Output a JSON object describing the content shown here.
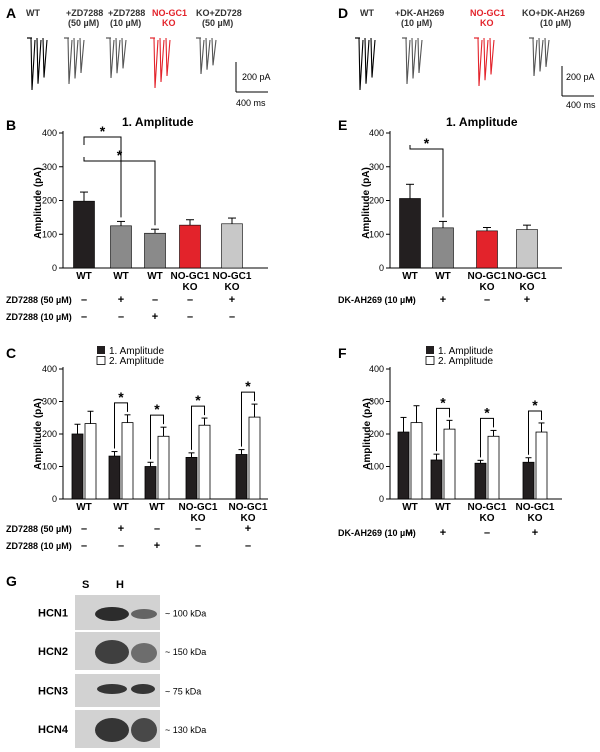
{
  "colors": {
    "black": "#231f20",
    "gray_dark": "#8a8a8a",
    "red": "#e3232b",
    "gray_light": "#c8c8c8",
    "white": "#ffffff"
  },
  "panels": {
    "A": {
      "letter": "A",
      "traces": [
        {
          "label": [
            "WT"
          ],
          "color": "#000000"
        },
        {
          "label": [
            "+ZD7288",
            "(50 µM)"
          ],
          "color": "#555555"
        },
        {
          "label": [
            "+ZD7288",
            "(10 µM)"
          ],
          "color": "#555555"
        },
        {
          "label": [
            "NO-GC1",
            "KO"
          ],
          "color": "#e3232b"
        },
        {
          "label": [
            "KO+ZD728",
            "(50 µM)"
          ],
          "color": "#555555"
        }
      ],
      "scale_y": "200 pA",
      "scale_x": "400 ms"
    },
    "D": {
      "letter": "D",
      "traces": [
        {
          "label": [
            "WT"
          ],
          "color": "#000000"
        },
        {
          "label": [
            "+DK-AH269",
            "(10 µM)"
          ],
          "color": "#555555"
        },
        {
          "label": [
            "NO-GC1",
            "KO"
          ],
          "color": "#e3232b"
        },
        {
          "label": [
            "KO+DK-AH269",
            "(10 µM)"
          ],
          "color": "#555555"
        }
      ],
      "scale_y": "200 pA",
      "scale_x": "400 ms"
    },
    "B": {
      "letter": "B",
      "title": "1. Amplitude",
      "ylabel": "Amplitude (pA)",
      "cond_labels": [
        "ZD7288 (50 µM)",
        "ZD7288 (10 µM)"
      ],
      "cond_rows": [
        [
          "–",
          "+",
          "–",
          "–",
          "+"
        ],
        [
          "–",
          "–",
          "+",
          "–",
          "–"
        ]
      ]
    },
    "E": {
      "letter": "E",
      "title": "1. Amplitude",
      "ylabel": "Amplitude (pA)",
      "cond_labels": [
        "DK-AH269 (10 µM)"
      ],
      "cond_rows": [
        [
          "–",
          "+",
          "–",
          "+"
        ]
      ]
    },
    "C": {
      "letter": "C",
      "ylabel": "Amplitude (pA)",
      "legend": [
        "1. Amplitude",
        "2. Amplitude"
      ],
      "cond_labels": [
        "ZD7288 (50 µM)",
        "ZD7288 (10 µM)"
      ],
      "cond_rows": [
        [
          "–",
          "+",
          "–",
          "–",
          "+"
        ],
        [
          "–",
          "–",
          "+",
          "–",
          "–"
        ]
      ]
    },
    "F": {
      "letter": "F",
      "ylabel": "Amplitude (pA)",
      "legend": [
        "1. Amplitude",
        "2. Amplitude"
      ],
      "cond_labels": [
        "DK-AH269 (10 µM)"
      ],
      "cond_rows": [
        [
          "–",
          "+",
          "–",
          "+"
        ]
      ]
    },
    "G": {
      "letter": "G",
      "lanes": [
        "S",
        "H"
      ],
      "blots": [
        {
          "name": "HCN1",
          "size": "~ 100 kDa"
        },
        {
          "name": "HCN2",
          "size": "~ 150 kDa"
        },
        {
          "name": "HCN3",
          "size": "~ 75 kDa"
        },
        {
          "name": "HCN4",
          "size": "~ 130 kDa"
        }
      ]
    }
  },
  "chart_data": [
    {
      "id": "B",
      "type": "bar",
      "title": "1. Amplitude",
      "ylabel": "Amplitude (pA)",
      "ylim": [
        0,
        400
      ],
      "yticks": [
        "0",
        "100",
        "200",
        "300",
        "400"
      ],
      "categories": [
        [
          "WT"
        ],
        [
          "WT"
        ],
        [
          "WT"
        ],
        [
          "NO-GC1",
          "KO"
        ],
        [
          "NO-GC1",
          "KO"
        ]
      ],
      "values": [
        198,
        125,
        103,
        127,
        131
      ],
      "errors": [
        27,
        13,
        12,
        16,
        17
      ],
      "colors": [
        "#231f20",
        "#8a8a8a",
        "#8a8a8a",
        "#e3232b",
        "#c8c8c8"
      ],
      "significance": [
        {
          "from": 0,
          "to": 1,
          "label": "*"
        },
        {
          "from": 0,
          "to": 2,
          "label": "*"
        }
      ]
    },
    {
      "id": "E",
      "type": "bar",
      "title": "1. Amplitude",
      "ylabel": "Amplitude (pA)",
      "ylim": [
        0,
        400
      ],
      "yticks": [
        "0",
        "100",
        "200",
        "300",
        "400"
      ],
      "categories": [
        [
          "WT"
        ],
        [
          "WT"
        ],
        [
          "NO-GC1",
          "KO"
        ],
        [
          "NO-GC1",
          "KO"
        ]
      ],
      "values": [
        206,
        119,
        110,
        114
      ],
      "errors": [
        42,
        19,
        10,
        13
      ],
      "colors": [
        "#231f20",
        "#8a8a8a",
        "#e3232b",
        "#c8c8c8"
      ],
      "significance": [
        {
          "from": 0,
          "to": 1,
          "label": "*"
        }
      ]
    },
    {
      "id": "C",
      "type": "bar",
      "ylabel": "Amplitude (pA)",
      "ylim": [
        0,
        400
      ],
      "yticks": [
        "0",
        "100",
        "200",
        "300",
        "400"
      ],
      "categories": [
        [
          "WT"
        ],
        [
          "WT"
        ],
        [
          "WT"
        ],
        [
          "NO-GC1",
          "KO"
        ],
        [
          "NO-GC1",
          "KO"
        ]
      ],
      "series": [
        {
          "name": "1. Amplitude",
          "values": [
            200,
            132,
            100,
            128,
            137
          ],
          "errors": [
            30,
            14,
            13,
            14,
            15
          ]
        },
        {
          "name": "2. Amplitude",
          "values": [
            232,
            235,
            193,
            227,
            252
          ],
          "errors": [
            38,
            24,
            28,
            22,
            40
          ]
        }
      ],
      "significance": [
        {
          "group": 1,
          "label": "*"
        },
        {
          "group": 2,
          "label": "*"
        },
        {
          "group": 3,
          "label": "*"
        },
        {
          "group": 4,
          "label": "*"
        }
      ]
    },
    {
      "id": "F",
      "type": "bar",
      "ylabel": "Amplitude (pA)",
      "ylim": [
        0,
        400
      ],
      "yticks": [
        "0",
        "100",
        "200",
        "300",
        "400"
      ],
      "categories": [
        [
          "WT"
        ],
        [
          "WT"
        ],
        [
          "NO-GC1",
          "KO"
        ],
        [
          "NO-GC1",
          "KO"
        ]
      ],
      "series": [
        {
          "name": "1. Amplitude",
          "values": [
            206,
            120,
            110,
            113
          ],
          "errors": [
            45,
            18,
            9,
            14
          ]
        },
        {
          "name": "2. Amplitude",
          "values": [
            235,
            215,
            193,
            206
          ],
          "errors": [
            52,
            27,
            18,
            28
          ]
        }
      ],
      "significance": [
        {
          "group": 1,
          "label": "*"
        },
        {
          "group": 2,
          "label": "*"
        },
        {
          "group": 3,
          "label": "*"
        }
      ]
    }
  ]
}
